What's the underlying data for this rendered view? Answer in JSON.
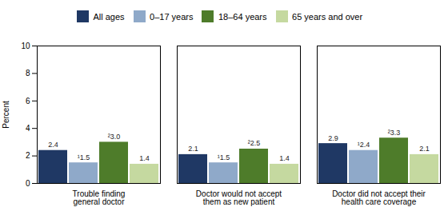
{
  "chart_data": {
    "type": "bar",
    "categories": [
      "Trouble finding\ngeneral doctor",
      "Doctor would not accept\nthem as new patient",
      "Doctor did not accept their\nhealth care coverage"
    ],
    "series": [
      {
        "name": "All ages",
        "color": "#1f3864",
        "values": [
          2.4,
          2.1,
          2.9
        ]
      },
      {
        "name": "0–17 years",
        "color": "#8fa9c9",
        "values": [
          1.5,
          1.5,
          2.4
        ],
        "value_labels": [
          "¹1.5",
          "¹1.5",
          "¹2.4"
        ]
      },
      {
        "name": "18–64 years",
        "color": "#4e7c2a",
        "values": [
          3.0,
          2.5,
          3.3
        ],
        "value_labels": [
          "²3.0",
          "²2.5",
          "²3.3"
        ]
      },
      {
        "name": "65 years and over",
        "color": "#c5d9a0",
        "values": [
          1.4,
          1.4,
          2.1
        ]
      }
    ],
    "ylabel": "Percent",
    "ylim": [
      0,
      10
    ],
    "yticks": [
      0,
      2,
      4,
      6,
      8,
      10
    ],
    "grid": false,
    "legend": "top",
    "data_labels": true
  }
}
